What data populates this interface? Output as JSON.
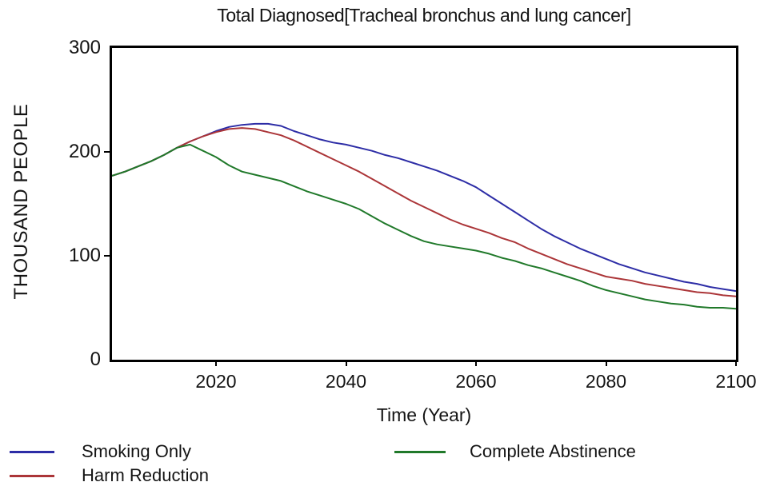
{
  "chart_data": {
    "type": "line",
    "title": "Total Diagnosed[Tracheal bronchus and lung cancer]",
    "xlabel": "Time (Year)",
    "ylabel": "THOUSAND PEOPLE",
    "xlim": [
      2004,
      2100
    ],
    "ylim": [
      0,
      300
    ],
    "x_ticks": [
      2020,
      2040,
      2060,
      2080,
      2100
    ],
    "y_ticks": [
      0,
      100,
      200,
      300
    ],
    "grid": false,
    "legend_position": "bottom",
    "frame_color": "#000000",
    "x": [
      2004,
      2006,
      2008,
      2010,
      2012,
      2014,
      2016,
      2018,
      2020,
      2022,
      2024,
      2026,
      2028,
      2030,
      2032,
      2034,
      2036,
      2038,
      2040,
      2042,
      2044,
      2046,
      2048,
      2050,
      2052,
      2054,
      2056,
      2058,
      2060,
      2062,
      2064,
      2066,
      2068,
      2070,
      2072,
      2074,
      2076,
      2078,
      2080,
      2082,
      2084,
      2086,
      2088,
      2090,
      2092,
      2094,
      2096,
      2098,
      2100
    ],
    "series": [
      {
        "name": "Smoking Only",
        "color": "#2d2da6",
        "values": [
          177,
          181,
          186,
          191,
          197,
          204,
          210,
          215,
          220,
          224,
          226,
          227,
          227,
          225,
          220,
          216,
          212,
          209,
          207,
          204,
          201,
          197,
          194,
          190,
          186,
          182,
          177,
          172,
          166,
          158,
          150,
          142,
          134,
          126,
          119,
          113,
          107,
          102,
          97,
          92,
          88,
          84,
          81,
          78,
          75,
          73,
          70,
          68,
          66
        ]
      },
      {
        "name": "Harm Reduction",
        "color": "#ab3538",
        "values": [
          177,
          181,
          186,
          191,
          197,
          204,
          210,
          215,
          219,
          222,
          223,
          222,
          219,
          216,
          211,
          205,
          199,
          193,
          187,
          181,
          174,
          167,
          160,
          153,
          147,
          141,
          135,
          130,
          126,
          122,
          117,
          113,
          107,
          102,
          97,
          92,
          88,
          84,
          80,
          78,
          76,
          73,
          71,
          69,
          67,
          65,
          64,
          62,
          61
        ]
      },
      {
        "name": "Complete Abstinence",
        "color": "#20792a",
        "values": [
          177,
          181,
          186,
          191,
          197,
          204,
          207,
          201,
          195,
          187,
          181,
          178,
          175,
          172,
          167,
          162,
          158,
          154,
          150,
          145,
          138,
          131,
          125,
          119,
          114,
          111,
          109,
          107,
          105,
          102,
          98,
          95,
          91,
          88,
          84,
          80,
          76,
          71,
          67,
          64,
          61,
          58,
          56,
          54,
          53,
          51,
          50,
          50,
          49
        ]
      }
    ]
  }
}
